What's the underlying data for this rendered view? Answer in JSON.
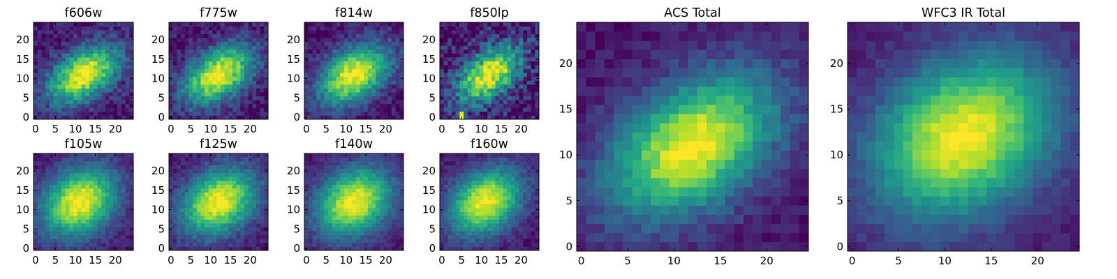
{
  "chart_data": [
    {
      "type": "heatmap",
      "title": "f606w",
      "peak": [
        12,
        11
      ],
      "angle_deg": 35,
      "sigma": [
        7.0,
        4.2
      ],
      "noise": 0.12,
      "xticks": [
        0,
        5,
        10,
        15,
        20
      ],
      "yticks": [
        0,
        5,
        10,
        15,
        20
      ],
      "xlim": [
        -0.5,
        24.5
      ],
      "ylim": [
        -0.5,
        24.5
      ]
    },
    {
      "type": "heatmap",
      "title": "f775w",
      "peak": [
        12,
        11
      ],
      "angle_deg": 35,
      "sigma": [
        7.0,
        4.2
      ],
      "noise": 0.12,
      "xticks": [
        0,
        5,
        10,
        15,
        20
      ],
      "yticks": [
        0,
        5,
        10,
        15,
        20
      ],
      "xlim": [
        -0.5,
        24.5
      ],
      "ylim": [
        -0.5,
        24.5
      ]
    },
    {
      "type": "heatmap",
      "title": "f814w",
      "peak": [
        12,
        11
      ],
      "angle_deg": 35,
      "sigma": [
        7.0,
        4.4
      ],
      "noise": 0.11,
      "xticks": [
        0,
        5,
        10,
        15,
        20
      ],
      "yticks": [
        0,
        5,
        10,
        15,
        20
      ],
      "xlim": [
        -0.5,
        24.5
      ],
      "ylim": [
        -0.5,
        24.5
      ]
    },
    {
      "type": "heatmap",
      "title": "f850lp",
      "peak": [
        12,
        11
      ],
      "angle_deg": 40,
      "sigma": [
        6.5,
        3.8
      ],
      "noise": 0.2,
      "xticks": [
        0,
        5,
        10,
        15,
        20
      ],
      "yticks": [
        0,
        5,
        10,
        15,
        20
      ],
      "xlim": [
        -0.5,
        24.5
      ],
      "ylim": [
        -0.5,
        24.5
      ],
      "hot_pixels": [
        [
          5,
          0
        ],
        [
          5,
          1
        ]
      ]
    },
    {
      "type": "heatmap",
      "title": "f105w",
      "peak": [
        11,
        12
      ],
      "angle_deg": 40,
      "sigma": [
        7.2,
        5.6
      ],
      "noise": 0.07,
      "xticks": [
        0,
        5,
        10,
        15,
        20
      ],
      "yticks": [
        0,
        5,
        10,
        15,
        20
      ],
      "xlim": [
        -0.5,
        24.5
      ],
      "ylim": [
        -0.5,
        24.5
      ]
    },
    {
      "type": "heatmap",
      "title": "f125w",
      "peak": [
        12,
        12
      ],
      "angle_deg": 35,
      "sigma": [
        7.2,
        5.4
      ],
      "noise": 0.08,
      "xticks": [
        0,
        5,
        10,
        15,
        20
      ],
      "yticks": [
        0,
        5,
        10,
        15,
        20
      ],
      "xlim": [
        -0.5,
        24.5
      ],
      "ylim": [
        -0.5,
        24.5
      ]
    },
    {
      "type": "heatmap",
      "title": "f140w",
      "peak": [
        12,
        12
      ],
      "angle_deg": 35,
      "sigma": [
        7.2,
        5.6
      ],
      "noise": 0.07,
      "xticks": [
        0,
        5,
        10,
        15,
        20
      ],
      "yticks": [
        0,
        5,
        10,
        15,
        20
      ],
      "xlim": [
        -0.5,
        24.5
      ],
      "ylim": [
        -0.5,
        24.5
      ]
    },
    {
      "type": "heatmap",
      "title": "f160w",
      "peak": [
        11,
        12
      ],
      "angle_deg": 38,
      "sigma": [
        7.0,
        5.2
      ],
      "noise": 0.07,
      "xticks": [
        0,
        5,
        10,
        15,
        20
      ],
      "yticks": [
        0,
        5,
        10,
        15,
        20
      ],
      "xlim": [
        -0.5,
        24.5
      ],
      "ylim": [
        -0.5,
        24.5
      ]
    },
    {
      "type": "heatmap",
      "title": "ACS Total",
      "peak": [
        12,
        11
      ],
      "angle_deg": 35,
      "sigma": [
        7.0,
        4.4
      ],
      "noise": 0.07,
      "xticks": [
        0,
        5,
        10,
        15,
        20
      ],
      "yticks": [
        0,
        5,
        10,
        15,
        20
      ],
      "xlim": [
        -0.5,
        24.5
      ],
      "ylim": [
        -0.5,
        24.5
      ]
    },
    {
      "type": "heatmap",
      "title": "WFC3 IR Total",
      "peak": [
        12,
        12
      ],
      "angle_deg": 35,
      "sigma": [
        7.4,
        5.6
      ],
      "noise": 0.05,
      "xticks": [
        0,
        5,
        10,
        15,
        20
      ],
      "yticks": [
        0,
        5,
        10,
        15,
        20
      ],
      "xlim": [
        -0.5,
        24.5
      ],
      "ylim": [
        -0.5,
        24.5
      ]
    }
  ],
  "colormap": [
    "#440154",
    "#482878",
    "#3e4989",
    "#31688e",
    "#26828e",
    "#1f9e89",
    "#35b779",
    "#6ece58",
    "#b5de2b",
    "#fde725"
  ]
}
